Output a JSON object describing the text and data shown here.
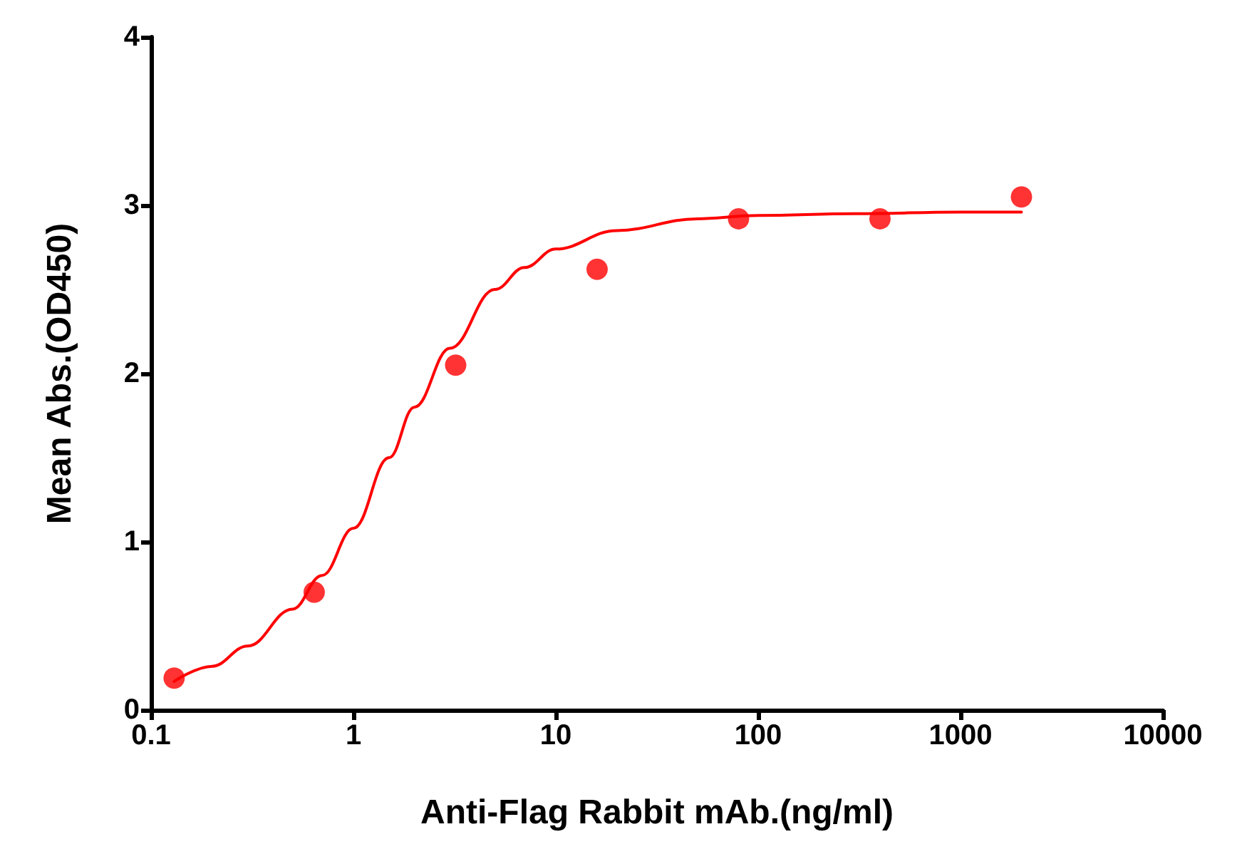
{
  "chart_data": {
    "type": "scatter",
    "xlabel": "Anti-Flag Rabbit mAb.(ng/ml)",
    "ylabel": "Mean Abs.(OD450)",
    "log": "x",
    "xlim": [
      0.1,
      10000
    ],
    "xticks": [
      0.1,
      1,
      10,
      100,
      1000,
      10000
    ],
    "ylim": [
      0,
      4
    ],
    "yticks": [
      0,
      1,
      2,
      3,
      4
    ],
    "grid": false,
    "series": [
      {
        "color": "#ff0000",
        "marker": "circle",
        "x": [
          0.13,
          0.64,
          3.2,
          16,
          80,
          400,
          2000
        ],
        "values": [
          0.19,
          0.7,
          2.05,
          2.62,
          2.92,
          2.92,
          3.05
        ]
      },
      {
        "type": "line",
        "color": "#ff0000",
        "marker": "none",
        "line_style": "solid",
        "x": [
          0.13,
          0.2,
          0.3,
          0.5,
          0.7,
          1,
          1.5,
          2,
          3,
          5,
          7,
          10,
          20,
          50,
          100,
          300,
          1000,
          2000
        ],
        "values": [
          0.17,
          0.26,
          0.38,
          0.6,
          0.8,
          1.08,
          1.5,
          1.8,
          2.15,
          2.5,
          2.63,
          2.74,
          2.85,
          2.92,
          2.94,
          2.95,
          2.96,
          2.96
        ]
      }
    ]
  }
}
